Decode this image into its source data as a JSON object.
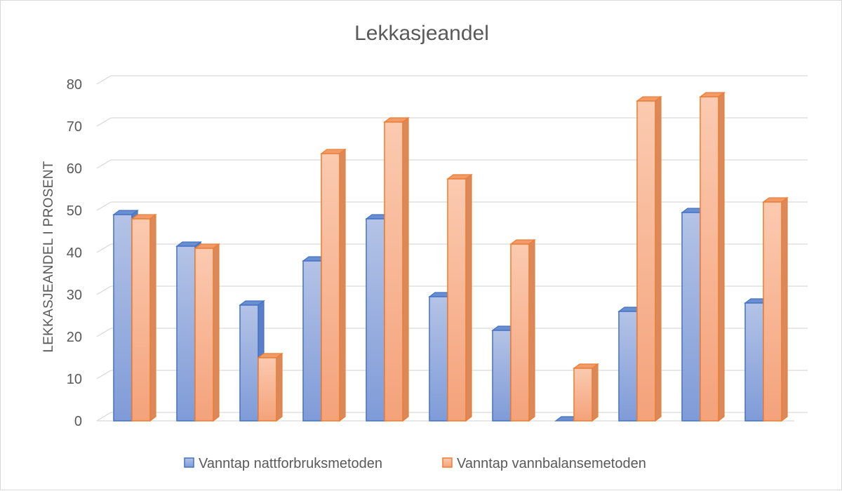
{
  "chart_data": {
    "type": "bar",
    "title": "Lekkasjeandel",
    "xlabel": "",
    "ylabel": "LEKKASJEANDEL I PROSENT",
    "ylim": [
      0,
      80
    ],
    "yticks": [
      "0",
      "10",
      "20",
      "30",
      "40",
      "50",
      "60",
      "70",
      "80"
    ],
    "grid": true,
    "legend_position": "bottom",
    "categories": [
      "",
      "",
      "",
      "",
      "",
      "",
      "",
      "",
      "",
      "",
      ""
    ],
    "series": [
      {
        "name": "Vanntap nattforbruksmetoden",
        "color": "#4472c4",
        "values": [
          49,
          41.5,
          27.5,
          38,
          48,
          29.5,
          21.5,
          0,
          26,
          49.5,
          28
        ]
      },
      {
        "name": "Vanntap vannbalansemetoden",
        "color": "#ed7d31",
        "values": [
          48,
          41,
          15,
          63.5,
          71,
          57.5,
          42,
          12.5,
          76,
          77,
          52
        ]
      }
    ]
  }
}
